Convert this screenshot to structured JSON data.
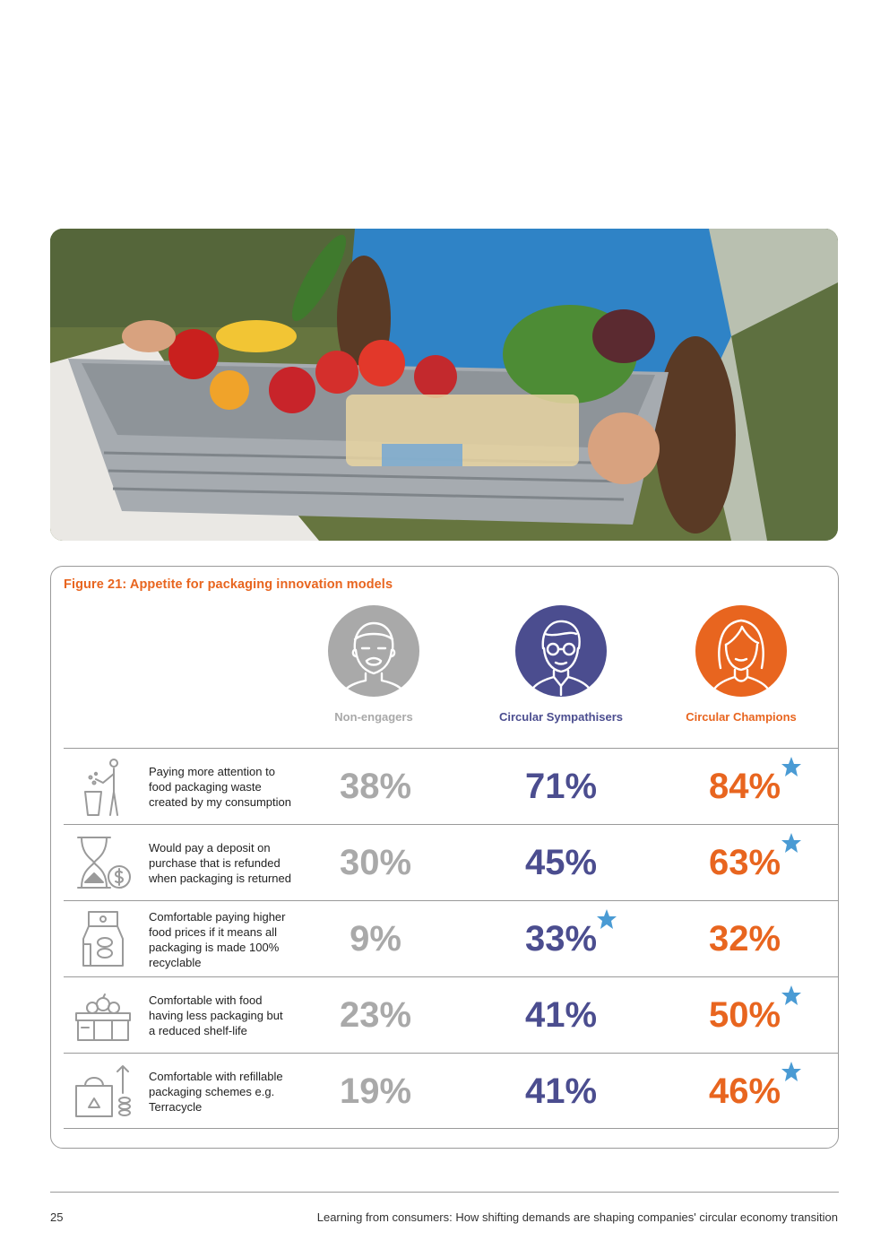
{
  "figure": {
    "title": "Figure 21: Appetite for packaging innovation models"
  },
  "personas": [
    {
      "label": "Non-engagers",
      "color": "#a9a9a9",
      "icon": "man-avatar-icon"
    },
    {
      "label": "Circular Sympathisers",
      "color": "#4b4d8f",
      "icon": "man-with-glasses-avatar-icon"
    },
    {
      "label": "Circular Champions",
      "color": "#e8651f",
      "icon": "woman-avatar-icon"
    }
  ],
  "rows": [
    {
      "text": "Paying more attention to food packaging waste created by my consumption",
      "icon": "person-throwing-waste-icon",
      "non": "38%",
      "sym": "71%",
      "champ": "84%",
      "star": "champ"
    },
    {
      "text": "Would pay a deposit on purchase that is refunded when packaging is returned",
      "icon": "hourglass-coin-icon",
      "non": "30%",
      "sym": "45%",
      "champ": "63%",
      "star": "champ"
    },
    {
      "text": "Comfortable paying higher food prices if it means all packaging is made 100% recyclable",
      "icon": "food-packaging-bag-icon",
      "non": "9%",
      "sym": "33%",
      "champ": "32%",
      "star": "sym"
    },
    {
      "text": "Comfortable with food having less packaging but a reduced shelf-life",
      "icon": "food-box-icon",
      "non": "23%",
      "sym": "41%",
      "champ": "50%",
      "star": "champ"
    },
    {
      "text": "Comfortable with refillable packaging schemes e.g. Terracycle",
      "icon": "recycle-bag-coins-icon",
      "non": "19%",
      "sym": "41%",
      "champ": "46%",
      "star": "champ"
    }
  ],
  "star_color": "#4a9bd4",
  "footer": {
    "page_number": "25",
    "title": "Learning from consumers: How shifting demands are shaping companies' circular economy transition"
  }
}
